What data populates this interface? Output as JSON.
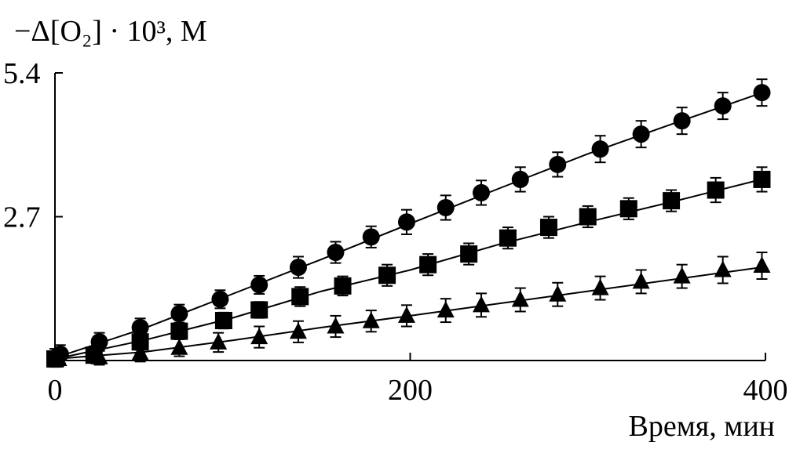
{
  "chart_data": {
    "type": "scatter",
    "title": "",
    "ylabel": "−Δ[O₂] · 10³, М",
    "xlabel": "Время, мин",
    "xlim": [
      0,
      400
    ],
    "ylim": [
      0,
      5.4
    ],
    "xticks": [
      0,
      200,
      400
    ],
    "yticks": [
      2.7,
      5.4
    ],
    "grid": false,
    "error_bars": true,
    "fit_lines": true,
    "series": [
      {
        "marker": "circle",
        "x": [
          0,
          3,
          25,
          48,
          70,
          93,
          115,
          137,
          158,
          178,
          198,
          220,
          240,
          262,
          283,
          307,
          330,
          353,
          376,
          398
        ],
        "y": [
          0.05,
          0.12,
          0.35,
          0.62,
          0.88,
          1.15,
          1.42,
          1.75,
          2.03,
          2.32,
          2.6,
          2.87,
          3.15,
          3.4,
          3.68,
          3.97,
          4.25,
          4.5,
          4.78,
          5.03
        ],
        "err": [
          0.17,
          0.17,
          0.17,
          0.17,
          0.17,
          0.17,
          0.17,
          0.2,
          0.2,
          0.2,
          0.23,
          0.23,
          0.23,
          0.23,
          0.23,
          0.25,
          0.25,
          0.25,
          0.25,
          0.25
        ],
        "fit": [
          [
            0,
            0.05
          ],
          [
            50,
            0.6
          ],
          [
            100,
            1.25
          ],
          [
            150,
            1.9
          ],
          [
            200,
            2.57
          ],
          [
            250,
            3.23
          ],
          [
            300,
            3.88
          ],
          [
            350,
            4.47
          ],
          [
            400,
            5.05
          ]
        ]
      },
      {
        "marker": "square",
        "x": [
          0,
          22,
          48,
          70,
          95,
          115,
          138,
          162,
          187,
          210,
          233,
          255,
          278,
          300,
          323,
          347,
          372,
          398
        ],
        "y": [
          0.03,
          0.1,
          0.35,
          0.55,
          0.75,
          0.95,
          1.2,
          1.4,
          1.6,
          1.8,
          2.0,
          2.3,
          2.5,
          2.7,
          2.85,
          3.0,
          3.2,
          3.4
        ],
        "err": [
          0.14,
          0.14,
          0.15,
          0.15,
          0.15,
          0.15,
          0.18,
          0.18,
          0.2,
          0.2,
          0.2,
          0.2,
          0.2,
          0.2,
          0.2,
          0.2,
          0.23,
          0.23
        ],
        "fit": [
          [
            0,
            0.03
          ],
          [
            50,
            0.38
          ],
          [
            100,
            0.8
          ],
          [
            150,
            1.3
          ],
          [
            200,
            1.7
          ],
          [
            250,
            2.18
          ],
          [
            300,
            2.6
          ],
          [
            350,
            3.0
          ],
          [
            400,
            3.42
          ]
        ]
      },
      {
        "marker": "triangle",
        "x": [
          2,
          25,
          48,
          70,
          92,
          115,
          137,
          158,
          178,
          198,
          220,
          240,
          262,
          283,
          307,
          330,
          353,
          376,
          398
        ],
        "y": [
          0.03,
          0.06,
          0.14,
          0.24,
          0.34,
          0.44,
          0.54,
          0.64,
          0.74,
          0.84,
          0.94,
          1.04,
          1.14,
          1.24,
          1.36,
          1.48,
          1.58,
          1.7,
          1.78
        ],
        "err": [
          0.14,
          0.14,
          0.16,
          0.16,
          0.18,
          0.2,
          0.2,
          0.2,
          0.2,
          0.2,
          0.22,
          0.22,
          0.22,
          0.22,
          0.22,
          0.22,
          0.22,
          0.25,
          0.25
        ],
        "fit": [
          [
            0,
            0.03
          ],
          [
            50,
            0.16
          ],
          [
            100,
            0.38
          ],
          [
            150,
            0.62
          ],
          [
            200,
            0.84
          ],
          [
            250,
            1.07
          ],
          [
            300,
            1.3
          ],
          [
            350,
            1.53
          ],
          [
            400,
            1.76
          ]
        ]
      }
    ]
  }
}
